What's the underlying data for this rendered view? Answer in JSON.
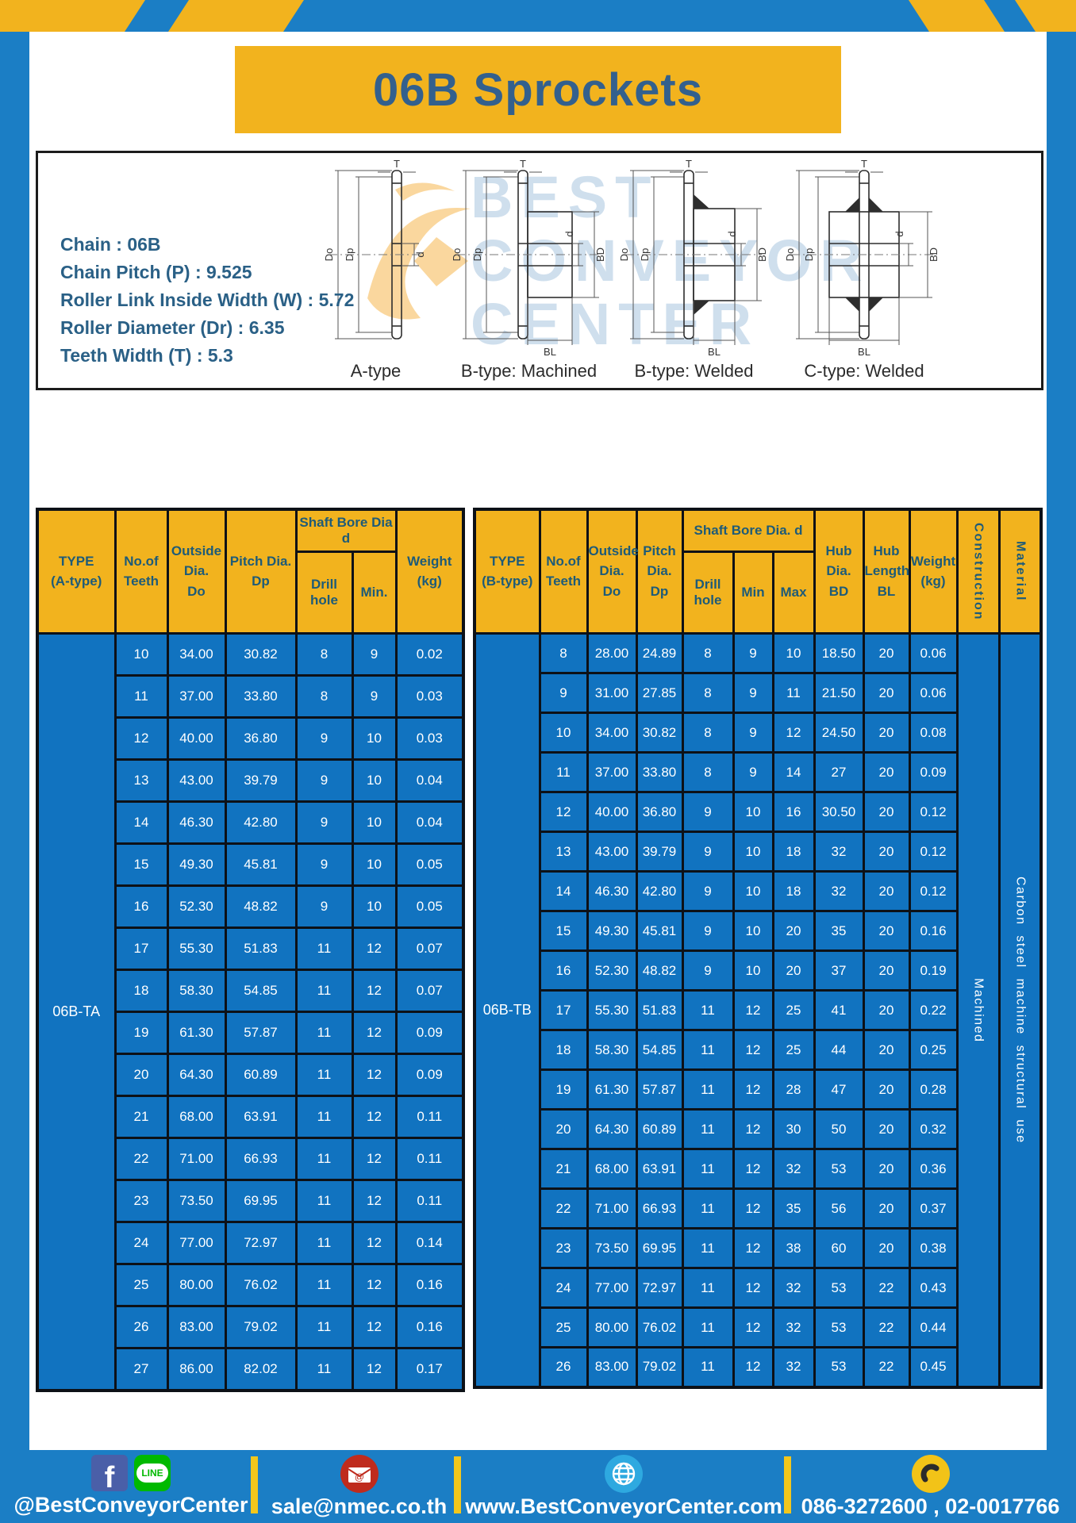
{
  "title": "06B Sprockets",
  "specs": [
    "Chain : 06B",
    "Chain Pitch (P) : 9.525",
    "Roller Link Inside Width (W) : 5.72",
    "Roller Diameter (Dr) : 6.35",
    "Teeth Width (T) : 5.3"
  ],
  "watermark": {
    "line1": "BEST",
    "line2": "CONVEYOR",
    "line3": "CENTER"
  },
  "diagrams": [
    {
      "label": "A-type",
      "dims": {
        "t": "T",
        "do": "Do",
        "dp": "Dp",
        "d": "d"
      }
    },
    {
      "label": "B-type: Machined",
      "dims": {
        "t": "T",
        "do": "Do",
        "dp": "Dp",
        "d": "d",
        "bd": "BD",
        "bl": "BL"
      }
    },
    {
      "label": "B-type: Welded",
      "dims": {
        "t": "T",
        "do": "Do",
        "dp": "Dp",
        "d": "d",
        "bd": "BD",
        "bl": "BL"
      }
    },
    {
      "label": "C-type: Welded",
      "dims": {
        "t": "T",
        "do": "Do",
        "dp": "Dp",
        "d": "d",
        "bd": "BD",
        "bl": "BL"
      }
    }
  ],
  "table_a": {
    "header": {
      "type": [
        "TYPE",
        "(A-type)"
      ],
      "teeth": [
        "No.of",
        "Teeth"
      ],
      "outside": [
        "Outside",
        "Dia.",
        "Do"
      ],
      "pitch": [
        "Pitch Dia.",
        "Dp"
      ],
      "shaft": "Shaft Bore Dia d",
      "drill": "Drill hole",
      "min": "Min.",
      "weight": [
        "Weight",
        "(kg)"
      ]
    },
    "group": "06B-TA",
    "rows": [
      [
        "10",
        "34.00",
        "30.82",
        "8",
        "9",
        "0.02"
      ],
      [
        "11",
        "37.00",
        "33.80",
        "8",
        "9",
        "0.03"
      ],
      [
        "12",
        "40.00",
        "36.80",
        "9",
        "10",
        "0.03"
      ],
      [
        "13",
        "43.00",
        "39.79",
        "9",
        "10",
        "0.04"
      ],
      [
        "14",
        "46.30",
        "42.80",
        "9",
        "10",
        "0.04"
      ],
      [
        "15",
        "49.30",
        "45.81",
        "9",
        "10",
        "0.05"
      ],
      [
        "16",
        "52.30",
        "48.82",
        "9",
        "10",
        "0.05"
      ],
      [
        "17",
        "55.30",
        "51.83",
        "11",
        "12",
        "0.07"
      ],
      [
        "18",
        "58.30",
        "54.85",
        "11",
        "12",
        "0.07"
      ],
      [
        "19",
        "61.30",
        "57.87",
        "11",
        "12",
        "0.09"
      ],
      [
        "20",
        "64.30",
        "60.89",
        "11",
        "12",
        "0.09"
      ],
      [
        "21",
        "68.00",
        "63.91",
        "11",
        "12",
        "0.11"
      ],
      [
        "22",
        "71.00",
        "66.93",
        "11",
        "12",
        "0.11"
      ],
      [
        "23",
        "73.50",
        "69.95",
        "11",
        "12",
        "0.11"
      ],
      [
        "24",
        "77.00",
        "72.97",
        "11",
        "12",
        "0.14"
      ],
      [
        "25",
        "80.00",
        "76.02",
        "11",
        "12",
        "0.16"
      ],
      [
        "26",
        "83.00",
        "79.02",
        "11",
        "12",
        "0.16"
      ],
      [
        "27",
        "86.00",
        "82.02",
        "11",
        "12",
        "0.17"
      ]
    ]
  },
  "table_b": {
    "header": {
      "type": [
        "TYPE",
        "(B-type)"
      ],
      "teeth": [
        "No.of",
        "Teeth"
      ],
      "outside": [
        "Outside",
        "Dia.",
        "Do"
      ],
      "pitch": [
        "Pitch",
        "Dia.",
        "Dp"
      ],
      "shaft": "Shaft Bore Dia. d",
      "drill": "Drill hole",
      "min": "Min",
      "max": "Max",
      "hub_dia": [
        "Hub",
        "Dia.",
        "BD"
      ],
      "hub_len": [
        "Hub",
        "Length",
        "BL"
      ],
      "weight": [
        "Weight",
        "(kg)"
      ],
      "construction": "Construction",
      "material": "Material"
    },
    "group": "06B-TB",
    "construction_value": "Machined",
    "material_value": "Carbon steel machine structural use",
    "rows": [
      [
        "8",
        "28.00",
        "24.89",
        "8",
        "9",
        "10",
        "18.50",
        "20",
        "0.06"
      ],
      [
        "9",
        "31.00",
        "27.85",
        "8",
        "9",
        "11",
        "21.50",
        "20",
        "0.06"
      ],
      [
        "10",
        "34.00",
        "30.82",
        "8",
        "9",
        "12",
        "24.50",
        "20",
        "0.08"
      ],
      [
        "11",
        "37.00",
        "33.80",
        "8",
        "9",
        "14",
        "27",
        "20",
        "0.09"
      ],
      [
        "12",
        "40.00",
        "36.80",
        "9",
        "10",
        "16",
        "30.50",
        "20",
        "0.12"
      ],
      [
        "13",
        "43.00",
        "39.79",
        "9",
        "10",
        "18",
        "32",
        "20",
        "0.12"
      ],
      [
        "14",
        "46.30",
        "42.80",
        "9",
        "10",
        "18",
        "32",
        "20",
        "0.12"
      ],
      [
        "15",
        "49.30",
        "45.81",
        "9",
        "10",
        "20",
        "35",
        "20",
        "0.16"
      ],
      [
        "16",
        "52.30",
        "48.82",
        "9",
        "10",
        "20",
        "37",
        "20",
        "0.19"
      ],
      [
        "17",
        "55.30",
        "51.83",
        "11",
        "12",
        "25",
        "41",
        "20",
        "0.22"
      ],
      [
        "18",
        "58.30",
        "54.85",
        "11",
        "12",
        "25",
        "44",
        "20",
        "0.25"
      ],
      [
        "19",
        "61.30",
        "57.87",
        "11",
        "12",
        "28",
        "47",
        "20",
        "0.28"
      ],
      [
        "20",
        "64.30",
        "60.89",
        "11",
        "12",
        "30",
        "50",
        "20",
        "0.32"
      ],
      [
        "21",
        "68.00",
        "63.91",
        "11",
        "12",
        "32",
        "53",
        "20",
        "0.36"
      ],
      [
        "22",
        "71.00",
        "66.93",
        "11",
        "12",
        "35",
        "56",
        "20",
        "0.37"
      ],
      [
        "23",
        "73.50",
        "69.95",
        "11",
        "12",
        "38",
        "60",
        "20",
        "0.38"
      ],
      [
        "24",
        "77.00",
        "72.97",
        "11",
        "12",
        "32",
        "53",
        "22",
        "0.43"
      ],
      [
        "25",
        "80.00",
        "76.02",
        "11",
        "12",
        "32",
        "53",
        "22",
        "0.44"
      ],
      [
        "26",
        "83.00",
        "79.02",
        "11",
        "12",
        "32",
        "53",
        "22",
        "0.45"
      ]
    ]
  },
  "footer": {
    "fb_letter": "f",
    "line_icon_text": "LINE",
    "social_handle": "@BestConveyorCenter",
    "email": "sale@nmec.co.th",
    "website": "www.BestConveyorCenter.com",
    "phones": "086-3272600 , 02-0017766"
  }
}
